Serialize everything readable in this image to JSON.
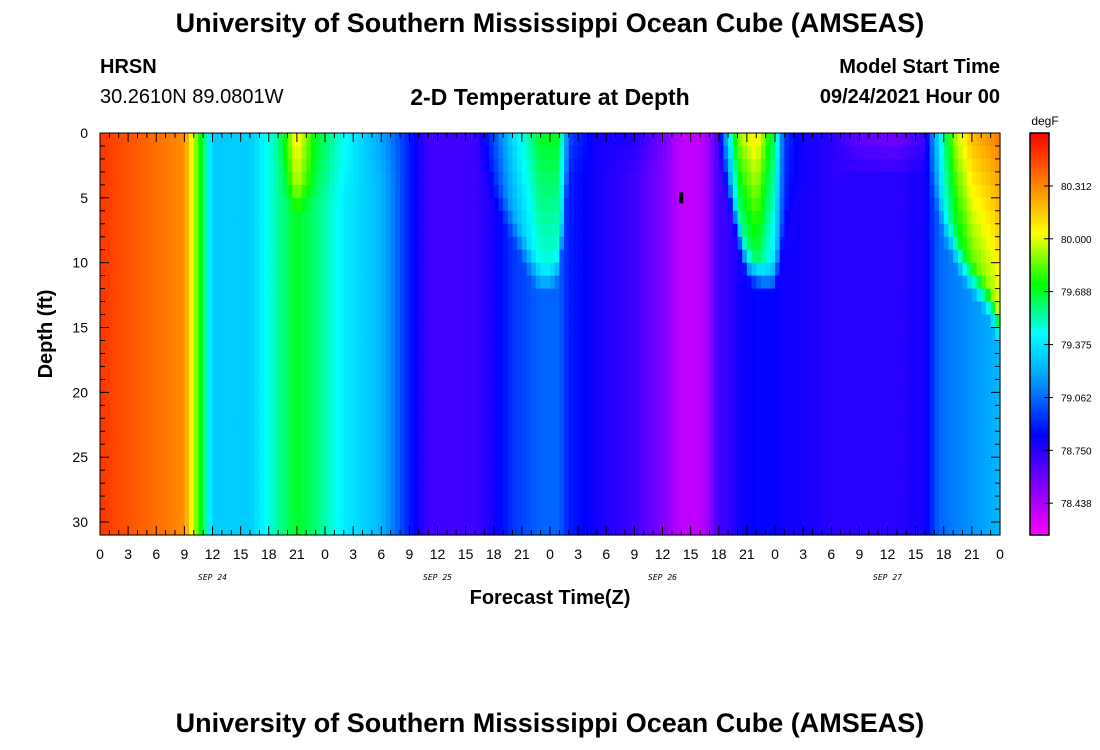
{
  "header": {
    "title": "University of Southern Mississippi Ocean Cube (AMSEAS)",
    "station": "HRSN",
    "coords": "30.2610N  89.0801W",
    "subtitle": "2-D Temperature at Depth",
    "start_label": "Model Start Time",
    "start_value": "09/24/2021 Hour 00"
  },
  "footer": {
    "title": "University of Southern Mississippi Ocean Cube (AMSEAS)"
  },
  "chart_data": {
    "type": "heatmap",
    "title": "2-D Temperature at Depth",
    "xlabel": "Forecast Time(Z)",
    "ylabel": "Depth (ft)",
    "x_range_hours": [
      0,
      96
    ],
    "y_range_ft": [
      0,
      31
    ],
    "x_tick_labels": [
      "0",
      "3",
      "6",
      "9",
      "12",
      "15",
      "18",
      "21",
      "0",
      "3",
      "6",
      "9",
      "12",
      "15",
      "18",
      "21",
      "0",
      "3",
      "6",
      "9",
      "12",
      "15",
      "18",
      "21",
      "0",
      "3",
      "6",
      "9",
      "12",
      "15",
      "18",
      "21",
      "0"
    ],
    "y_ticks": [
      0,
      5,
      10,
      15,
      20,
      25,
      30
    ],
    "date_labels": [
      {
        "hour": 12,
        "label": "SEP 24"
      },
      {
        "hour": 36,
        "label": "SEP 25"
      },
      {
        "hour": 60,
        "label": "SEP 26"
      },
      {
        "hour": 84,
        "label": "SEP 27"
      }
    ],
    "colorbar": {
      "unit": "degF",
      "range": [
        78.25,
        80.625
      ],
      "levels": [
        "80.312",
        "80.000",
        "79.688",
        "79.375",
        "79.062",
        "78.750",
        "78.438"
      ]
    },
    "surface_temps_by_hour": [
      {
        "h": 0,
        "t": 80.5
      },
      {
        "h": 9,
        "t": 80.3
      },
      {
        "h": 10.5,
        "t": 79.8
      },
      {
        "h": 12,
        "t": 79.3
      },
      {
        "h": 16,
        "t": 79.3
      },
      {
        "h": 19,
        "t": 79.55
      },
      {
        "h": 21,
        "t": 80.1
      },
      {
        "h": 23,
        "t": 79.7
      },
      {
        "h": 26,
        "t": 79.45
      },
      {
        "h": 30,
        "t": 79.2
      },
      {
        "h": 33,
        "t": 78.9
      },
      {
        "h": 35,
        "t": 78.7
      },
      {
        "h": 40,
        "t": 78.7
      },
      {
        "h": 42,
        "t": 79.0
      },
      {
        "h": 44,
        "t": 79.35
      },
      {
        "h": 47,
        "t": 79.7
      },
      {
        "h": 49,
        "t": 79.7
      },
      {
        "h": 50,
        "t": 79.0
      },
      {
        "h": 53,
        "t": 78.8
      },
      {
        "h": 57,
        "t": 78.8
      },
      {
        "h": 60,
        "t": 78.6
      },
      {
        "h": 62,
        "t": 78.4
      },
      {
        "h": 64,
        "t": 78.4
      },
      {
        "h": 65,
        "t": 78.55
      },
      {
        "h": 66,
        "t": 78.8
      },
      {
        "h": 67,
        "t": 79.35
      },
      {
        "h": 68,
        "t": 79.9
      },
      {
        "h": 70,
        "t": 80.1
      },
      {
        "h": 72,
        "t": 79.6
      },
      {
        "h": 73,
        "t": 78.95
      },
      {
        "h": 75,
        "t": 78.8
      },
      {
        "h": 78,
        "t": 78.75
      },
      {
        "h": 81,
        "t": 78.6
      },
      {
        "h": 85,
        "t": 78.55
      },
      {
        "h": 88,
        "t": 78.7
      },
      {
        "h": 88.5,
        "t": 79.0
      },
      {
        "h": 89.5,
        "t": 79.4
      },
      {
        "h": 91,
        "t": 79.9
      },
      {
        "h": 93,
        "t": 80.2
      },
      {
        "h": 96,
        "t": 80.35
      }
    ],
    "deep_temps_by_hour": [
      {
        "h": 0,
        "t": 80.5
      },
      {
        "h": 9,
        "t": 80.3
      },
      {
        "h": 10.5,
        "t": 79.8
      },
      {
        "h": 12,
        "t": 79.3
      },
      {
        "h": 16,
        "t": 79.3
      },
      {
        "h": 19,
        "t": 79.55
      },
      {
        "h": 21,
        "t": 79.7
      },
      {
        "h": 23,
        "t": 79.6
      },
      {
        "h": 26,
        "t": 79.4
      },
      {
        "h": 30,
        "t": 79.25
      },
      {
        "h": 33,
        "t": 78.9
      },
      {
        "h": 35,
        "t": 78.7
      },
      {
        "h": 40,
        "t": 78.7
      },
      {
        "h": 42,
        "t": 78.8
      },
      {
        "h": 44,
        "t": 78.95
      },
      {
        "h": 47,
        "t": 79.05
      },
      {
        "h": 49,
        "t": 79.05
      },
      {
        "h": 50,
        "t": 78.9
      },
      {
        "h": 53,
        "t": 78.8
      },
      {
        "h": 57,
        "t": 78.7
      },
      {
        "h": 60,
        "t": 78.55
      },
      {
        "h": 62,
        "t": 78.4
      },
      {
        "h": 64,
        "t": 78.4
      },
      {
        "h": 65,
        "t": 78.5
      },
      {
        "h": 66,
        "t": 78.7
      },
      {
        "h": 67,
        "t": 78.72
      },
      {
        "h": 68,
        "t": 78.8
      },
      {
        "h": 70,
        "t": 78.85
      },
      {
        "h": 72,
        "t": 78.85
      },
      {
        "h": 73,
        "t": 78.8
      },
      {
        "h": 75,
        "t": 78.8
      },
      {
        "h": 78,
        "t": 78.75
      },
      {
        "h": 81,
        "t": 78.75
      },
      {
        "h": 85,
        "t": 78.75
      },
      {
        "h": 88,
        "t": 78.8
      },
      {
        "h": 88.5,
        "t": 78.9
      },
      {
        "h": 89.5,
        "t": 79.05
      },
      {
        "h": 91,
        "t": 79.1
      },
      {
        "h": 93,
        "t": 79.15
      },
      {
        "h": 96,
        "t": 79.25
      }
    ],
    "mixed_layer_depth_ft_by_hour": [
      {
        "h": 0,
        "d": 0
      },
      {
        "h": 19,
        "d": 2
      },
      {
        "h": 21,
        "d": 4
      },
      {
        "h": 23,
        "d": 3
      },
      {
        "h": 40,
        "d": 0
      },
      {
        "h": 42,
        "d": 3
      },
      {
        "h": 44,
        "d": 6
      },
      {
        "h": 46,
        "d": 9
      },
      {
        "h": 47,
        "d": 10
      },
      {
        "h": 48,
        "d": 10
      },
      {
        "h": 49,
        "d": 9
      },
      {
        "h": 50,
        "d": 1
      },
      {
        "h": 66,
        "d": 0
      },
      {
        "h": 67,
        "d": 3
      },
      {
        "h": 68,
        "d": 6
      },
      {
        "h": 69,
        "d": 9
      },
      {
        "h": 71,
        "d": 10
      },
      {
        "h": 72,
        "d": 10
      },
      {
        "h": 73,
        "d": 6
      },
      {
        "h": 75,
        "d": 1
      },
      {
        "h": 88,
        "d": 1
      },
      {
        "h": 89,
        "d": 3
      },
      {
        "h": 90,
        "d": 6
      },
      {
        "h": 92,
        "d": 9
      },
      {
        "h": 94,
        "d": 11
      },
      {
        "h": 95,
        "d": 12
      },
      {
        "h": 96,
        "d": 14
      }
    ],
    "marker": {
      "hour": 62,
      "depth_ft": 5
    }
  },
  "colors": {
    "colormap": [
      "#ff00ff",
      "#8000ff",
      "#0000ff",
      "#0090ff",
      "#00ffff",
      "#00ff00",
      "#ffff00",
      "#ff8000",
      "#ff0000"
    ]
  }
}
